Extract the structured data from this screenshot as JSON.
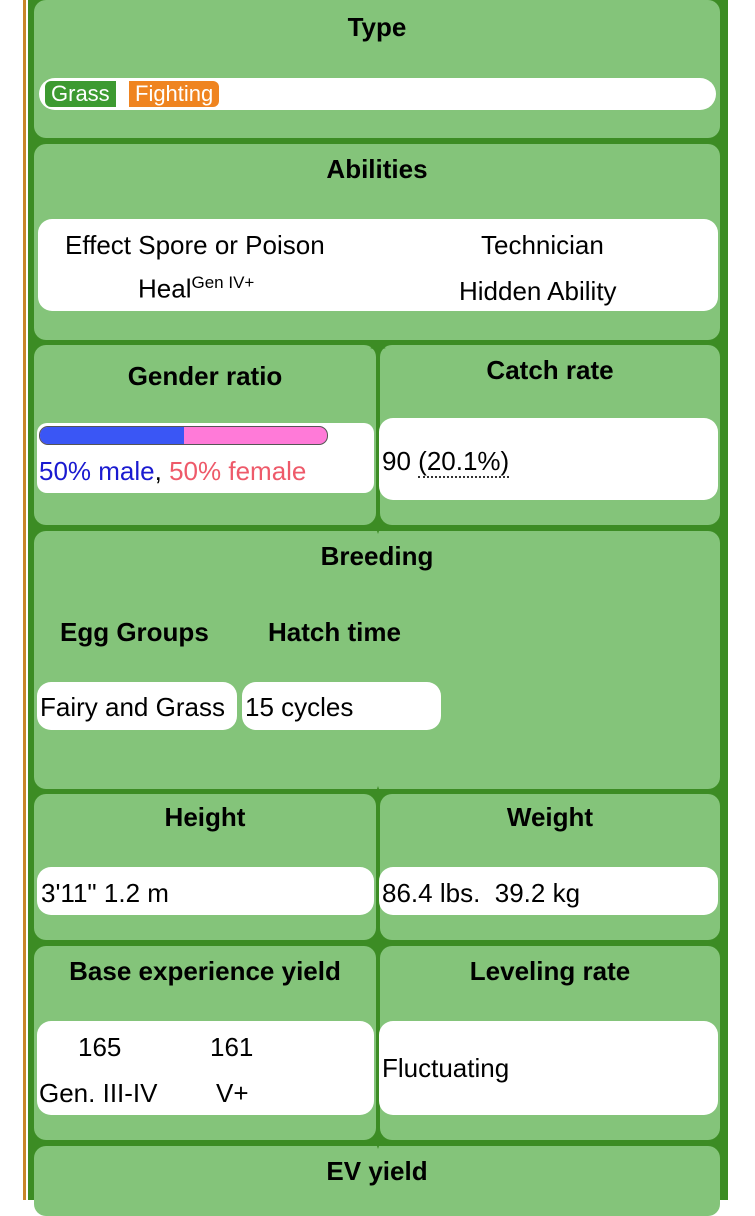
{
  "type_section": {
    "header": "Type",
    "types": [
      {
        "label": "Grass",
        "color": "#3d9a31"
      },
      {
        "label": "Fighting",
        "color": "#ef8420"
      }
    ]
  },
  "abilities": {
    "header": "Abilities",
    "ability1": "Effect Spore or Poison",
    "ability2_name": "Heal",
    "ability2_sup": "Gen IV+",
    "hidden_name": "Technician",
    "hidden_label": "Hidden Ability"
  },
  "gender": {
    "header": "Gender ratio",
    "male_text": "50% male",
    "separator": ",",
    "female_text": "50% female",
    "male_fraction": 0.5,
    "male_color": "#3a56f5",
    "female_color": "#ff7ad8"
  },
  "catch_rate": {
    "header": "Catch rate",
    "value": "90",
    "percent": "(20.1%)"
  },
  "breeding": {
    "header": "Breeding",
    "egg_groups_label": "Egg Groups",
    "hatch_time_label": "Hatch time",
    "egg_groups_value": "Fairy and Grass",
    "hatch_time_value": "15 cycles"
  },
  "height": {
    "header": "Height",
    "imperial": "3'11\"",
    "metric": "1.2 m"
  },
  "weight": {
    "header": "Weight",
    "imperial": "86.4 lbs.",
    "metric": "39.2 kg"
  },
  "base_exp": {
    "header": "Base experience yield",
    "value1": "165",
    "gen1": "Gen. III-IV",
    "value2": "161",
    "gen2": "V+"
  },
  "leveling": {
    "header": "Leveling rate",
    "value": "Fluctuating"
  },
  "ev_yield": {
    "header": "EV yield"
  }
}
